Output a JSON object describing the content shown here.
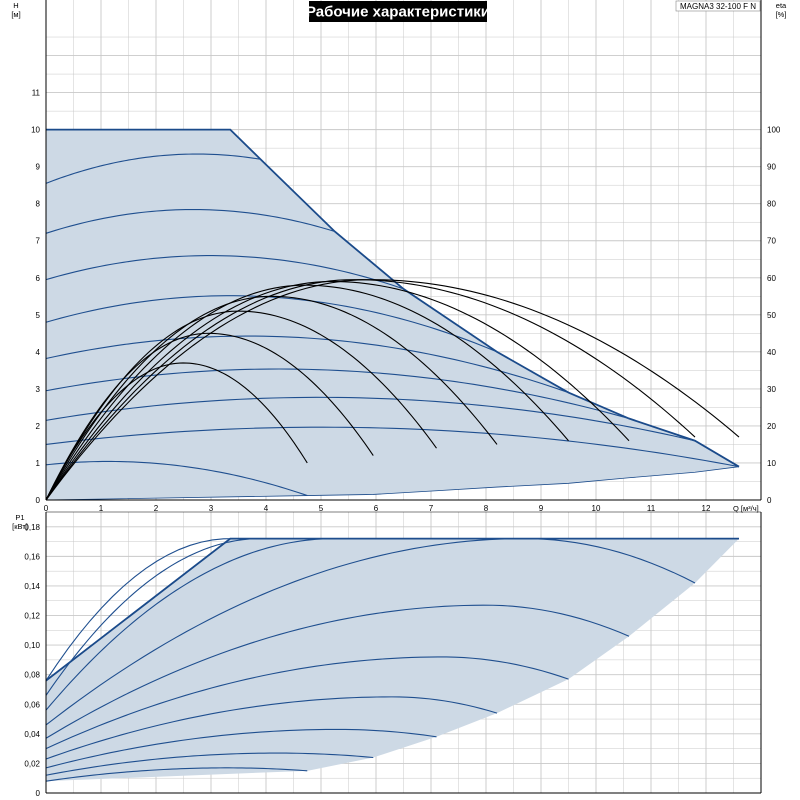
{
  "title": "Рабочие характеристики",
  "model": "MAGNA3 32-100 F N",
  "colors": {
    "envelope_fill": "#cdd9e5",
    "envelope_edge": "#1a4a8a",
    "hq_curve": "#1f4f8f",
    "eta_curve": "#000000",
    "grid": "#c8c8c8"
  },
  "chart_data": [
    {
      "name": "hq",
      "type": "line",
      "xlabel": "Q [м³/ч]",
      "ylabel_left": [
        "H",
        "[м]"
      ],
      "ylabel_right": [
        "eta",
        "[%]"
      ],
      "xlim": [
        0,
        13
      ],
      "ylim": [
        0,
        13.5
      ],
      "ylim_right": [
        0,
        135
      ],
      "xticks": [
        0,
        1,
        2,
        3,
        4,
        5,
        6,
        7,
        8,
        9,
        10,
        11,
        12
      ],
      "yticks": [
        0,
        1,
        2,
        3,
        4,
        5,
        6,
        7,
        8,
        9,
        10,
        11
      ],
      "yticks_right": [
        0,
        10,
        20,
        30,
        40,
        50,
        60,
        70,
        80,
        90,
        100
      ],
      "grid": true,
      "envelope": [
        [
          0,
          10
        ],
        [
          3.35,
          10
        ],
        [
          3.9,
          9.2
        ],
        [
          5.25,
          7.25
        ],
        [
          6.5,
          5.7
        ],
        [
          8.2,
          4.0
        ],
        [
          9.5,
          2.9
        ],
        [
          10.6,
          2.2
        ],
        [
          11.8,
          1.6
        ],
        [
          12.6,
          0.9
        ],
        [
          11.8,
          0.75
        ],
        [
          10.6,
          0.6
        ],
        [
          9.5,
          0.45
        ],
        [
          8.2,
          0.35
        ],
        [
          7.1,
          0.25
        ],
        [
          5.95,
          0.15
        ],
        [
          4.75,
          0.12
        ],
        [
          0,
          0
        ]
      ],
      "hq_curves": [
        {
          "h0": 8.55,
          "top": 9.3,
          "qtop": 2.6,
          "qend": 3.9,
          "hend": 9.2
        },
        {
          "h0": 7.2,
          "top": 7.8,
          "qtop": 2.5,
          "qend": 5.25,
          "hend": 7.25
        },
        {
          "h0": 5.95,
          "top": 6.45,
          "qtop": 2.3,
          "qend": 6.5,
          "hend": 5.7
        },
        {
          "h0": 4.8,
          "top": 5.25,
          "qtop": 2.1,
          "qend": 8.2,
          "hend": 4.0
        },
        {
          "h0": 3.82,
          "top": 4.15,
          "qtop": 2.0,
          "qend": 9.5,
          "hend": 2.9
        },
        {
          "h0": 2.95,
          "top": 3.2,
          "qtop": 1.8,
          "qend": 10.6,
          "hend": 2.2
        },
        {
          "h0": 2.15,
          "top": 2.35,
          "qtop": 1.6,
          "qend": 11.8,
          "hend": 1.6
        },
        {
          "h0": 1.5,
          "top": 1.63,
          "qtop": 1.4,
          "qend": 12.6,
          "hend": 0.9
        },
        {
          "h0": 0.95,
          "top": 1.03,
          "qtop": 1.0,
          "qend": 4.75,
          "hend": 0.12
        }
      ],
      "eta_curves": [
        {
          "peak": 37,
          "qpeak": 2.5,
          "qend": 4.75,
          "etaend": 10
        },
        {
          "peak": 45,
          "qpeak": 2.95,
          "qend": 5.95,
          "etaend": 12
        },
        {
          "peak": 51,
          "qpeak": 3.5,
          "qend": 7.1,
          "etaend": 14
        },
        {
          "peak": 55,
          "qpeak": 4.1,
          "qend": 8.2,
          "etaend": 15
        },
        {
          "peak": 58,
          "qpeak": 4.7,
          "qend": 9.5,
          "etaend": 16
        },
        {
          "peak": 59,
          "qpeak": 5.2,
          "qend": 10.6,
          "etaend": 16
        },
        {
          "peak": 59.5,
          "qpeak": 5.6,
          "qend": 11.8,
          "etaend": 17
        },
        {
          "peak": 59.5,
          "qpeak": 5.9,
          "qend": 12.6,
          "etaend": 17
        }
      ]
    },
    {
      "name": "p1",
      "type": "line",
      "ylabel_left": [
        "P1",
        "[кВт]"
      ],
      "xlim": [
        0,
        13
      ],
      "ylim": [
        0,
        0.19
      ],
      "yticks": [
        0,
        0.02,
        0.04,
        0.06,
        0.08,
        0.1,
        0.12,
        0.14,
        0.16,
        0.18
      ],
      "ytick_labels": [
        "0",
        "0,02",
        "0,04",
        "0,06",
        "0,08",
        "0,10",
        "0,12",
        "0,14",
        "0,16",
        "0,18"
      ],
      "grid": true,
      "envelope": [
        [
          0,
          0.076
        ],
        [
          3.35,
          0.172
        ],
        [
          12.6,
          0.172
        ],
        [
          11.8,
          0.142
        ],
        [
          10.6,
          0.106
        ],
        [
          9.5,
          0.077
        ],
        [
          8.2,
          0.054
        ],
        [
          7.1,
          0.038
        ],
        [
          5.95,
          0.024
        ],
        [
          4.75,
          0.015
        ],
        [
          0,
          0.008
        ]
      ],
      "p1_curves": [
        {
          "y0": 0.076,
          "peak": 0.172,
          "qpeak": 3.35,
          "qend": 12.1,
          "yend": 0.172
        },
        {
          "y0": 0.066,
          "peak": 0.172,
          "qpeak": 3.9,
          "qend": 3.9,
          "yend": 0.172
        },
        {
          "y0": 0.056,
          "peak": 0.172,
          "qpeak": 5.25,
          "qend": 5.25,
          "yend": 0.172
        },
        {
          "y0": 0.046,
          "peak": 0.172,
          "qpeak": 8.7,
          "qend": 11.8,
          "yend": 0.142
        },
        {
          "y0": 0.037,
          "peak": 0.127,
          "qpeak": 8.0,
          "qend": 10.6,
          "yend": 0.106
        },
        {
          "y0": 0.03,
          "peak": 0.092,
          "qpeak": 7.2,
          "qend": 9.5,
          "yend": 0.077
        },
        {
          "y0": 0.023,
          "peak": 0.065,
          "qpeak": 6.3,
          "qend": 8.2,
          "yend": 0.054
        },
        {
          "y0": 0.017,
          "peak": 0.043,
          "qpeak": 5.3,
          "qend": 7.1,
          "yend": 0.038
        },
        {
          "y0": 0.012,
          "peak": 0.027,
          "qpeak": 4.2,
          "qend": 5.95,
          "yend": 0.024
        },
        {
          "y0": 0.008,
          "peak": 0.017,
          "qpeak": 3.3,
          "qend": 4.75,
          "yend": 0.015
        }
      ]
    }
  ]
}
